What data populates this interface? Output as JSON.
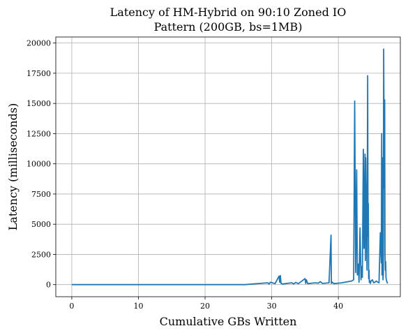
{
  "chart_data": {
    "type": "line",
    "title_lines": [
      "Latency of HM-Hybrid on 90:10 Zoned IO",
      "Pattern (200GB, bs=1MB)"
    ],
    "xlabel": "Cumulative GBs Written",
    "ylabel": "Latency (milliseconds)",
    "xlim": [
      -2.4,
      49.3
    ],
    "ylim": [
      -1000,
      20500
    ],
    "xticks": [
      0,
      10,
      20,
      30,
      40
    ],
    "xtick_labels": [
      "0",
      "10",
      "20",
      "30",
      "40"
    ],
    "yticks": [
      0,
      2500,
      5000,
      7500,
      10000,
      12500,
      15000,
      17500,
      20000
    ],
    "ytick_labels": [
      "0",
      "2500",
      "5000",
      "7500",
      "10000",
      "12500",
      "15000",
      "17500",
      "20000"
    ],
    "grid": true,
    "color": "#1f77b4",
    "series": [
      {
        "x": [
          0,
          26,
          29.4,
          29.6,
          29.8,
          30.5,
          31.1,
          31.2,
          31.3,
          31.4,
          31.6,
          33,
          33.3,
          33.6,
          34,
          35,
          35.1,
          35.2,
          35.4,
          36.5,
          37,
          37.3,
          37.6,
          38.6,
          38.9,
          38.95,
          39.1,
          39.3,
          40.5,
          42,
          42.3,
          42.45,
          42.6,
          42.75,
          42.85,
          43,
          43.1,
          43.25,
          43.4,
          43.5,
          43.6,
          43.75,
          43.85,
          44,
          44.05,
          44.1,
          44.2,
          44.3,
          44.4,
          44.45,
          44.5,
          44.55,
          44.6,
          44.65,
          44.75,
          44.8,
          44.9,
          45.1,
          45.3,
          45.5,
          45.7,
          45.9,
          46.1,
          46.3,
          46.45,
          46.5,
          46.55,
          46.6,
          46.65,
          46.7,
          46.75,
          46.8,
          46.85,
          46.9,
          46.95,
          47,
          47.05,
          47.1,
          47.15,
          47.2,
          47.3,
          47.4
        ],
        "y": [
          0,
          0,
          150,
          50,
          200,
          80,
          700,
          200,
          750,
          100,
          50,
          150,
          60,
          180,
          80,
          500,
          100,
          400,
          80,
          150,
          120,
          250,
          100,
          150,
          4100,
          100,
          200,
          80,
          150,
          300,
          400,
          15200,
          1000,
          9500,
          800,
          1700,
          200,
          4700,
          400,
          1500,
          600,
          11200,
          3000,
          10800,
          2000,
          10500,
          6000,
          1200,
          17300,
          4000,
          6700,
          500,
          1200,
          200,
          300,
          100,
          300,
          400,
          150,
          200,
          300,
          200,
          150,
          4300,
          1800,
          12500,
          800,
          10500,
          2000,
          400,
          1000,
          19500,
          14000,
          8000,
          15300,
          2600,
          1200,
          1900,
          600,
          400,
          200,
          100
        ]
      }
    ]
  }
}
